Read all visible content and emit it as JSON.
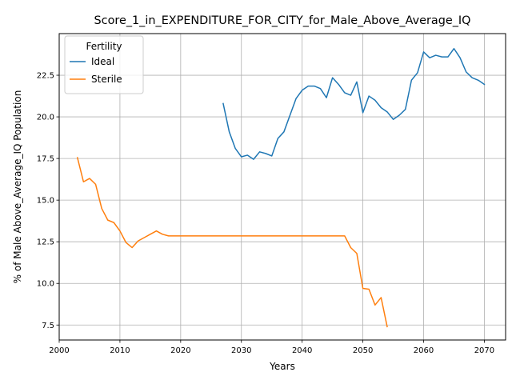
{
  "chart_data": {
    "type": "line",
    "title": "Score_1_in_EXPENDITURE_FOR_CITY_for_Male_Above_Average_IQ",
    "xlabel": "Years",
    "ylabel": "% of Male Above_Average_IQ Population",
    "xlim": [
      2000,
      2073.5
    ],
    "ylim": [
      6.6,
      25.0
    ],
    "xticks": [
      2000,
      2010,
      2020,
      2030,
      2040,
      2050,
      2060,
      2070
    ],
    "yticks": [
      7.5,
      10.0,
      12.5,
      15.0,
      17.5,
      20.0,
      22.5
    ],
    "ytick_labels": [
      "7.5",
      "10.0",
      "12.5",
      "15.0",
      "17.5",
      "20.0",
      "22.5"
    ],
    "grid": true,
    "legend": {
      "title": "Fertility",
      "placement": "top-left"
    },
    "series": [
      {
        "name": "Ideal",
        "color": "#1f77b4",
        "x": [
          2027,
          2028,
          2029,
          2030,
          2031,
          2032,
          2033,
          2034,
          2035,
          2036,
          2037,
          2038,
          2039,
          2040,
          2041,
          2042,
          2043,
          2044,
          2045,
          2046,
          2047,
          2048,
          2049,
          2050,
          2051,
          2052,
          2053,
          2054,
          2055,
          2056,
          2057,
          2058,
          2059,
          2060,
          2061,
          2062,
          2063,
          2064,
          2065,
          2066,
          2067,
          2068,
          2069,
          2070
        ],
        "y": [
          20.8,
          19.1,
          18.1,
          17.6,
          17.7,
          17.45,
          17.9,
          17.8,
          17.65,
          18.7,
          19.1,
          20.1,
          21.1,
          21.6,
          21.85,
          21.85,
          21.7,
          21.15,
          22.35,
          21.95,
          21.45,
          21.3,
          22.1,
          20.25,
          21.25,
          21.0,
          20.55,
          20.3,
          19.85,
          20.1,
          20.45,
          22.2,
          22.65,
          23.9,
          23.55,
          23.7,
          23.6,
          23.6,
          24.1,
          23.55,
          22.7,
          22.35,
          22.2,
          21.95
        ]
      },
      {
        "name": "Sterile",
        "color": "#ff7f0e",
        "x": [
          2003,
          2004,
          2005,
          2006,
          2007,
          2008,
          2009,
          2010,
          2011,
          2012,
          2013,
          2014,
          2015,
          2016,
          2017,
          2018,
          2019,
          2020,
          2021,
          2022,
          2023,
          2024,
          2025,
          2026,
          2027,
          2028,
          2029,
          2030,
          2031,
          2032,
          2033,
          2034,
          2035,
          2036,
          2037,
          2038,
          2039,
          2040,
          2041,
          2042,
          2043,
          2044,
          2045,
          2046,
          2047,
          2048,
          2049,
          2050,
          2051,
          2052,
          2053,
          2054
        ],
        "y": [
          17.55,
          16.1,
          16.3,
          15.95,
          14.5,
          13.8,
          13.65,
          13.15,
          12.45,
          12.15,
          12.55,
          12.75,
          12.95,
          13.15,
          12.95,
          12.85,
          12.85,
          12.85,
          12.85,
          12.85,
          12.85,
          12.85,
          12.85,
          12.85,
          12.85,
          12.85,
          12.85,
          12.85,
          12.85,
          12.85,
          12.85,
          12.85,
          12.85,
          12.85,
          12.85,
          12.85,
          12.85,
          12.85,
          12.85,
          12.85,
          12.85,
          12.85,
          12.85,
          12.85,
          12.85,
          12.15,
          11.8,
          9.7,
          9.65,
          8.7,
          9.15,
          7.4
        ]
      }
    ]
  }
}
